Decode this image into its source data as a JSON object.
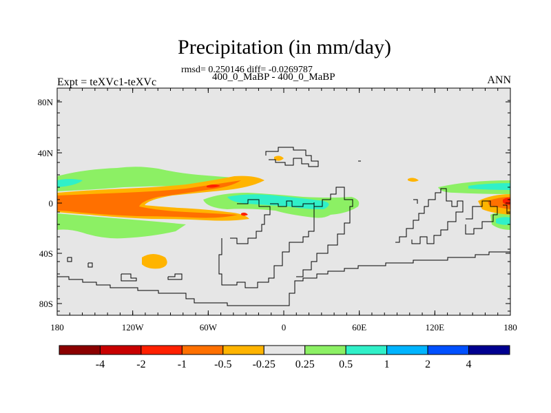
{
  "header": {
    "title": "Precipitation (in mm/day)",
    "stats": "rmsd= 0.250146 diff= -0.0269787",
    "subtitle": "400_0_MaBP - 400_0_MaBP",
    "left_label": "Expt = teXVc1-teXVc",
    "right_label": "ANN"
  },
  "map": {
    "background_color": "#e6e6e6",
    "coastline_color": "#000000",
    "lat_ticks": [
      "80N",
      "40N",
      "0",
      "40S",
      "80S"
    ],
    "lon_ticks": [
      "180",
      "120W",
      "60W",
      "0",
      "60E",
      "120E",
      "180"
    ]
  },
  "colorbar": {
    "colors": [
      "#8b0000",
      "#c80000",
      "#ff2000",
      "#ff7000",
      "#ffb400",
      "#e6e6e6",
      "#8cf064",
      "#30f0c8",
      "#00b4ff",
      "#0050ff",
      "#000090"
    ],
    "labels": [
      "-4",
      "-2",
      "-1",
      "-0.5",
      "-0.25",
      "0.25",
      "0.5",
      "1",
      "2",
      "4"
    ]
  }
}
